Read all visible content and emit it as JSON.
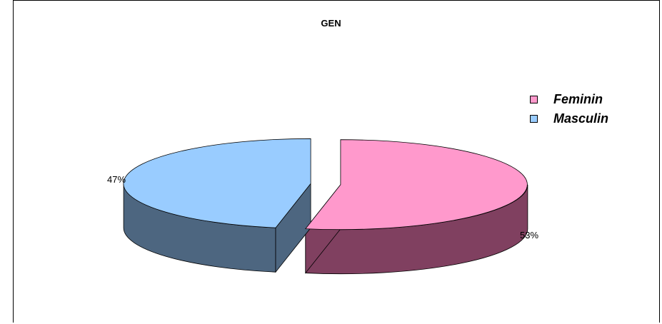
{
  "chart_data": {
    "type": "pie",
    "title": "GEN",
    "categories": [
      "Feminin",
      "Masculin"
    ],
    "values": [
      53,
      47
    ],
    "data_labels": [
      "53%",
      "47%"
    ],
    "colors": {
      "Feminin": {
        "top": "#FF99CC",
        "side": "#804060"
      },
      "Masculin": {
        "top": "#99CCFF",
        "side": "#4D6680"
      }
    },
    "legend_position": "right",
    "style": "3D exploded pie"
  }
}
